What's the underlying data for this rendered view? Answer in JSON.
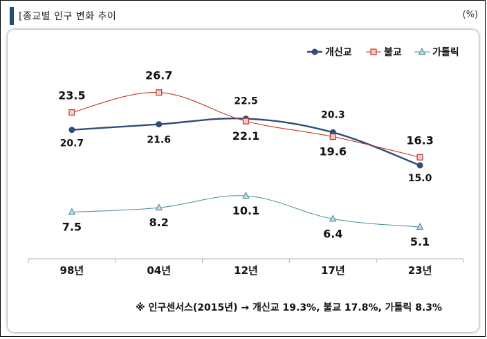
{
  "header": {
    "title": "[종교별 인구 변화 추이",
    "unit": "(%)"
  },
  "chart_data": {
    "type": "line",
    "title": "[종교별 인구 변화 추이",
    "unit": "(%)",
    "categories": [
      "98년",
      "04년",
      "12년",
      "17년",
      "23년"
    ],
    "series": [
      {
        "name": "개신교",
        "values": [
          20.7,
          21.6,
          22.5,
          20.3,
          15.0
        ],
        "color": "#2e4d7b",
        "marker": "circle"
      },
      {
        "name": "불교",
        "values": [
          23.5,
          26.7,
          22.1,
          19.6,
          16.3
        ],
        "color": "#c0392b",
        "marker": "square"
      },
      {
        "name": "가톨릭",
        "values": [
          7.5,
          8.2,
          10.1,
          6.4,
          5.1
        ],
        "color": "#4a8a9a",
        "marker": "triangle"
      }
    ],
    "labels": {
      "개신교": [
        "20.7",
        "21.6",
        "22.5",
        "20.3",
        "15.0"
      ],
      "불교": [
        "23.5",
        "26.7",
        "22.1",
        "19.6",
        "16.3"
      ],
      "가톨릭": [
        "7.5",
        "8.2",
        "10.1",
        "6.4",
        "5.1"
      ]
    },
    "legend_position": "top-right",
    "ylim": [
      0,
      30
    ],
    "grid": false
  },
  "footnote": "※ 인구센서스(2015년) → 개신교 19.3%, 불교 17.8%, 가톨릭 8.3%"
}
